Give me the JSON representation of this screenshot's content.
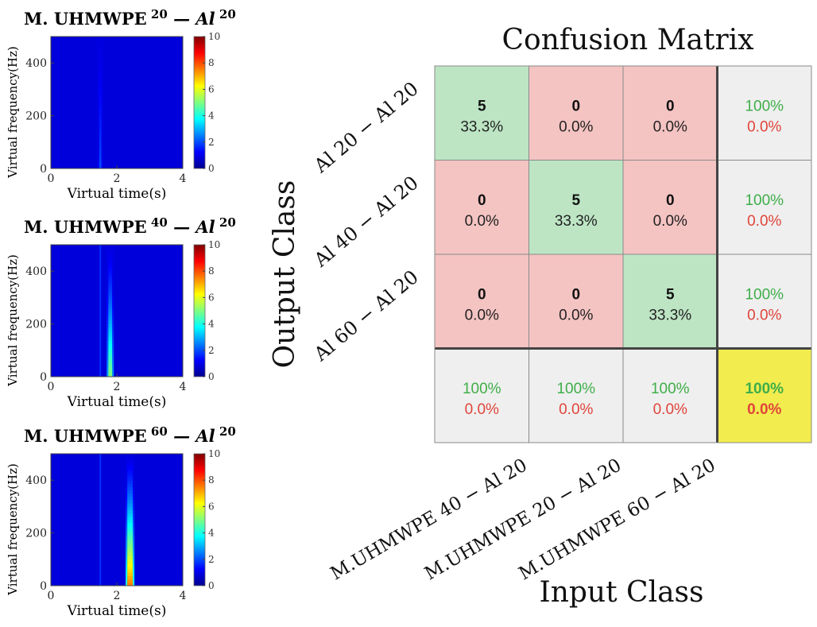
{
  "chart_data": [
    {
      "type": "heatmap",
      "title_prefix": "M. UHMWPE",
      "title_sup_left": "20",
      "title_mid": "— Al",
      "title_sup_right": "20",
      "xlabel": "Virtual time(s)",
      "ylabel": "Virtual frequency(Hz)",
      "xticks": [
        "0",
        "2",
        "4"
      ],
      "yticks": [
        "0",
        "200",
        "400"
      ],
      "xlim": [
        0,
        4
      ],
      "ylim": [
        0,
        500
      ],
      "colorbar_ticks": [
        "0",
        "2",
        "4",
        "6",
        "8",
        "10"
      ],
      "clim": [
        0,
        10
      ],
      "peak_time": 1.5,
      "peak_value": 2.0
    },
    {
      "type": "heatmap",
      "title_prefix": "M. UHMWPE",
      "title_sup_left": "40",
      "title_mid": "— Al",
      "title_sup_right": "20",
      "xlabel": "Virtual time(s)",
      "ylabel": "Virtual frequency(Hz)",
      "xticks": [
        "0",
        "2",
        "4"
      ],
      "yticks": [
        "0",
        "200",
        "400"
      ],
      "xlim": [
        0,
        4
      ],
      "ylim": [
        0,
        500
      ],
      "colorbar_ticks": [
        "0",
        "2",
        "4",
        "6",
        "8",
        "10"
      ],
      "clim": [
        0,
        10
      ],
      "peak_time": 1.8,
      "peak_value": 5.0
    },
    {
      "type": "heatmap",
      "title_prefix": "M. UHMWPE",
      "title_sup_left": "60",
      "title_mid": "— Al",
      "title_sup_right": "20",
      "xlabel": "Virtual time(s)",
      "ylabel": "Virtual frequency(Hz)",
      "xticks": [
        "0",
        "2",
        "4"
      ],
      "yticks": [
        "0",
        "200",
        "400"
      ],
      "xlim": [
        0,
        4
      ],
      "ylim": [
        0,
        500
      ],
      "colorbar_ticks": [
        "0",
        "2",
        "4",
        "6",
        "8",
        "10"
      ],
      "clim": [
        0,
        10
      ],
      "peak_time": 2.4,
      "peak_value": 7.5
    },
    {
      "type": "table",
      "title": "Confusion Matrix",
      "xlabel": "Input Class",
      "ylabel": "Output Class",
      "row_labels": [
        "Al 20 − Al 20",
        "Al 40 − Al 20",
        "Al 60 − Al 20"
      ],
      "col_labels": [
        "M.UHMWPE 40 − Al 20",
        "M.UHMWPE 20 − Al 20",
        "M.UHMWPE 60 − Al 20"
      ],
      "counts": [
        [
          5,
          0,
          0
        ],
        [
          0,
          5,
          0
        ],
        [
          0,
          0,
          5
        ]
      ],
      "percents": [
        [
          "33.3%",
          "0.0%",
          "0.0%"
        ],
        [
          "0.0%",
          "33.3%",
          "0.0%"
        ],
        [
          "0.0%",
          "0.0%",
          "33.3%"
        ]
      ],
      "row_summary": [
        [
          "100%",
          "0.0%"
        ],
        [
          "100%",
          "0.0%"
        ],
        [
          "100%",
          "0.0%"
        ]
      ],
      "col_summary": [
        [
          "100%",
          "0.0%"
        ],
        [
          "100%",
          "0.0%"
        ],
        [
          "100%",
          "0.0%"
        ]
      ],
      "overall": [
        "100%",
        "0.0%"
      ],
      "colors": {
        "correct": "#bde5c4",
        "incorrect": "#f4c4c2",
        "summary": "#efefef",
        "overall": "#f2ec4e",
        "good_text": "#3fae49",
        "bad_text": "#e0443a"
      }
    }
  ]
}
